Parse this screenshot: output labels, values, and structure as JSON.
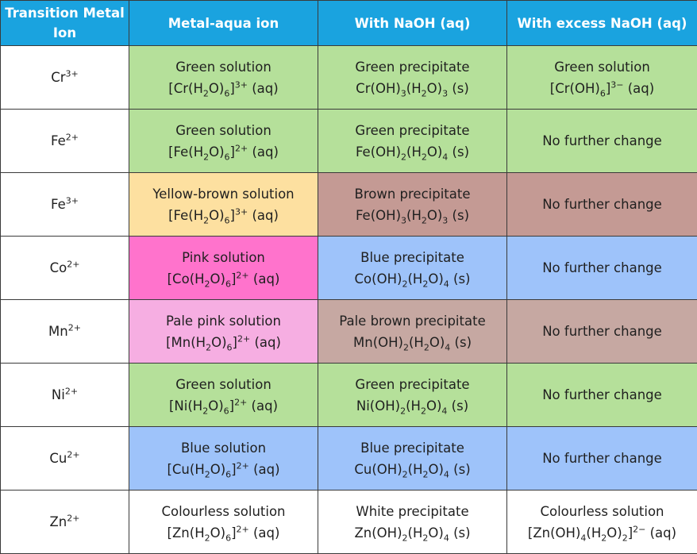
{
  "headers": [
    "Transition Metal Ion",
    "Metal-aqua ion",
    "With NaOH (aq)",
    "With excess NaOH (aq)"
  ],
  "rows": [
    {
      "ion": {
        "base": "Cr",
        "charge": "3+"
      },
      "aqua": {
        "label": "Green solution",
        "formula": "[Cr(H2O)6]3+ (aq)",
        "color": "#b5e09a"
      },
      "naoh": {
        "label": "Green precipitate",
        "formula": "Cr(OH)3(H2O)3 (s)",
        "color": "#b5e09a"
      },
      "excess": {
        "label": "Green solution",
        "formula": "[Cr(OH)6]3− (aq)",
        "color": "#b5e09a"
      }
    },
    {
      "ion": {
        "base": "Fe",
        "charge": "2+"
      },
      "aqua": {
        "label": "Green solution",
        "formula": "[Fe(H2O)6]2+ (aq)",
        "color": "#b5e09a"
      },
      "naoh": {
        "label": "Green precipitate",
        "formula": "Fe(OH)2(H2O)4 (s)",
        "color": "#b5e09a"
      },
      "excess": {
        "label": "No further change",
        "formula": "",
        "color": "#b5e09a"
      }
    },
    {
      "ion": {
        "base": "Fe",
        "charge": "3+"
      },
      "aqua": {
        "label": "Yellow-brown solution",
        "formula": "[Fe(H2O)6]3+ (aq)",
        "color": "#fde0a0"
      },
      "naoh": {
        "label": "Brown precipitate",
        "formula": "Fe(OH)3(H2O)3 (s)",
        "color": "#c49a94"
      },
      "excess": {
        "label": "No further change",
        "formula": "",
        "color": "#c49a94"
      }
    },
    {
      "ion": {
        "base": "Co",
        "charge": "2+"
      },
      "aqua": {
        "label": "Pink solution",
        "formula": "[Co(H2O)6]2+ (aq)",
        "color": "#ff73cc"
      },
      "naoh": {
        "label": "Blue precipitate",
        "formula": "Co(OH)2(H2O)4 (s)",
        "color": "#9ec3fa"
      },
      "excess": {
        "label": "No further change",
        "formula": "",
        "color": "#9ec3fa"
      }
    },
    {
      "ion": {
        "base": "Mn",
        "charge": "2+"
      },
      "aqua": {
        "label": "Pale pink solution",
        "formula": "[Mn(H2O)6]2+ (aq)",
        "color": "#f6aee2"
      },
      "naoh": {
        "label": "Pale brown precipitate",
        "formula": "Mn(OH)2(H2O)4 (s)",
        "color": "#c6a8a2"
      },
      "excess": {
        "label": "No further change",
        "formula": "",
        "color": "#c6a8a2"
      }
    },
    {
      "ion": {
        "base": "Ni",
        "charge": "2+"
      },
      "aqua": {
        "label": "Green solution",
        "formula": "[Ni(H2O)6]2+ (aq)",
        "color": "#b5e09a"
      },
      "naoh": {
        "label": "Green precipitate",
        "formula": "Ni(OH)2(H2O)4 (s)",
        "color": "#b5e09a"
      },
      "excess": {
        "label": "No further change",
        "formula": "",
        "color": "#b5e09a"
      }
    },
    {
      "ion": {
        "base": "Cu",
        "charge": "2+"
      },
      "aqua": {
        "label": "Blue solution",
        "formula": "[Cu(H2O)6]2+ (aq)",
        "color": "#9ec3fa"
      },
      "naoh": {
        "label": "Blue precipitate",
        "formula": "Cu(OH)2(H2O)4 (s)",
        "color": "#9ec3fa"
      },
      "excess": {
        "label": "No further change",
        "formula": "",
        "color": "#9ec3fa"
      }
    },
    {
      "ion": {
        "base": "Zn",
        "charge": "2+"
      },
      "aqua": {
        "label": "Colourless solution",
        "formula": "[Zn(H2O)6]2+ (aq)",
        "color": "#ffffff"
      },
      "naoh": {
        "label": "White precipitate",
        "formula": "Zn(OH)2(H2O)4 (s)",
        "color": "#ffffff"
      },
      "excess": {
        "label": "Colourless solution",
        "formula": "[Zn(OH)4(H2O)2]2− (aq)",
        "color": "#ffffff"
      }
    }
  ],
  "colors": {
    "header_bg": "#1aa3df",
    "header_text": "#ffffff",
    "border": "#3a3a3a"
  }
}
